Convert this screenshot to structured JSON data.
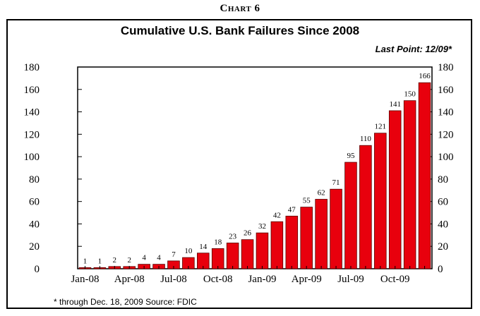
{
  "header": {
    "chart_label": "Chart 6",
    "footnote": "* through Dec. 18, 2009     Source: FDIC"
  },
  "colors": {
    "bar": "#e8000d",
    "bar_edge": "#5a0000",
    "axis": "#000000"
  },
  "chart_data": {
    "type": "bar",
    "title": "Cumulative U.S. Bank Failures Since 2008",
    "annotation": "Last Point: 12/09*",
    "xlabel": "",
    "ylabel": "",
    "ylim": [
      0,
      180
    ],
    "yticks": [
      0,
      20,
      40,
      60,
      80,
      100,
      120,
      140,
      160,
      180
    ],
    "categories": [
      "Jan-08",
      "Feb-08",
      "Mar-08",
      "Apr-08",
      "May-08",
      "Jun-08",
      "Jul-08",
      "Aug-08",
      "Sep-08",
      "Oct-08",
      "Nov-08",
      "Dec-08",
      "Jan-09",
      "Feb-09",
      "Mar-09",
      "Apr-09",
      "May-09",
      "Jun-09",
      "Jul-09",
      "Aug-09",
      "Sep-09",
      "Oct-09",
      "Nov-09",
      "Dec-09"
    ],
    "x_tick_labels": [
      "Jan-08",
      "Apr-08",
      "Jul-08",
      "Oct-08",
      "Jan-09",
      "Apr-09",
      "Jul-09",
      "Oct-09"
    ],
    "values": [
      1,
      1,
      2,
      2,
      4,
      4,
      7,
      10,
      14,
      18,
      23,
      26,
      32,
      42,
      47,
      55,
      62,
      71,
      95,
      110,
      121,
      141,
      150,
      166
    ],
    "grid": false,
    "legend": "none"
  }
}
